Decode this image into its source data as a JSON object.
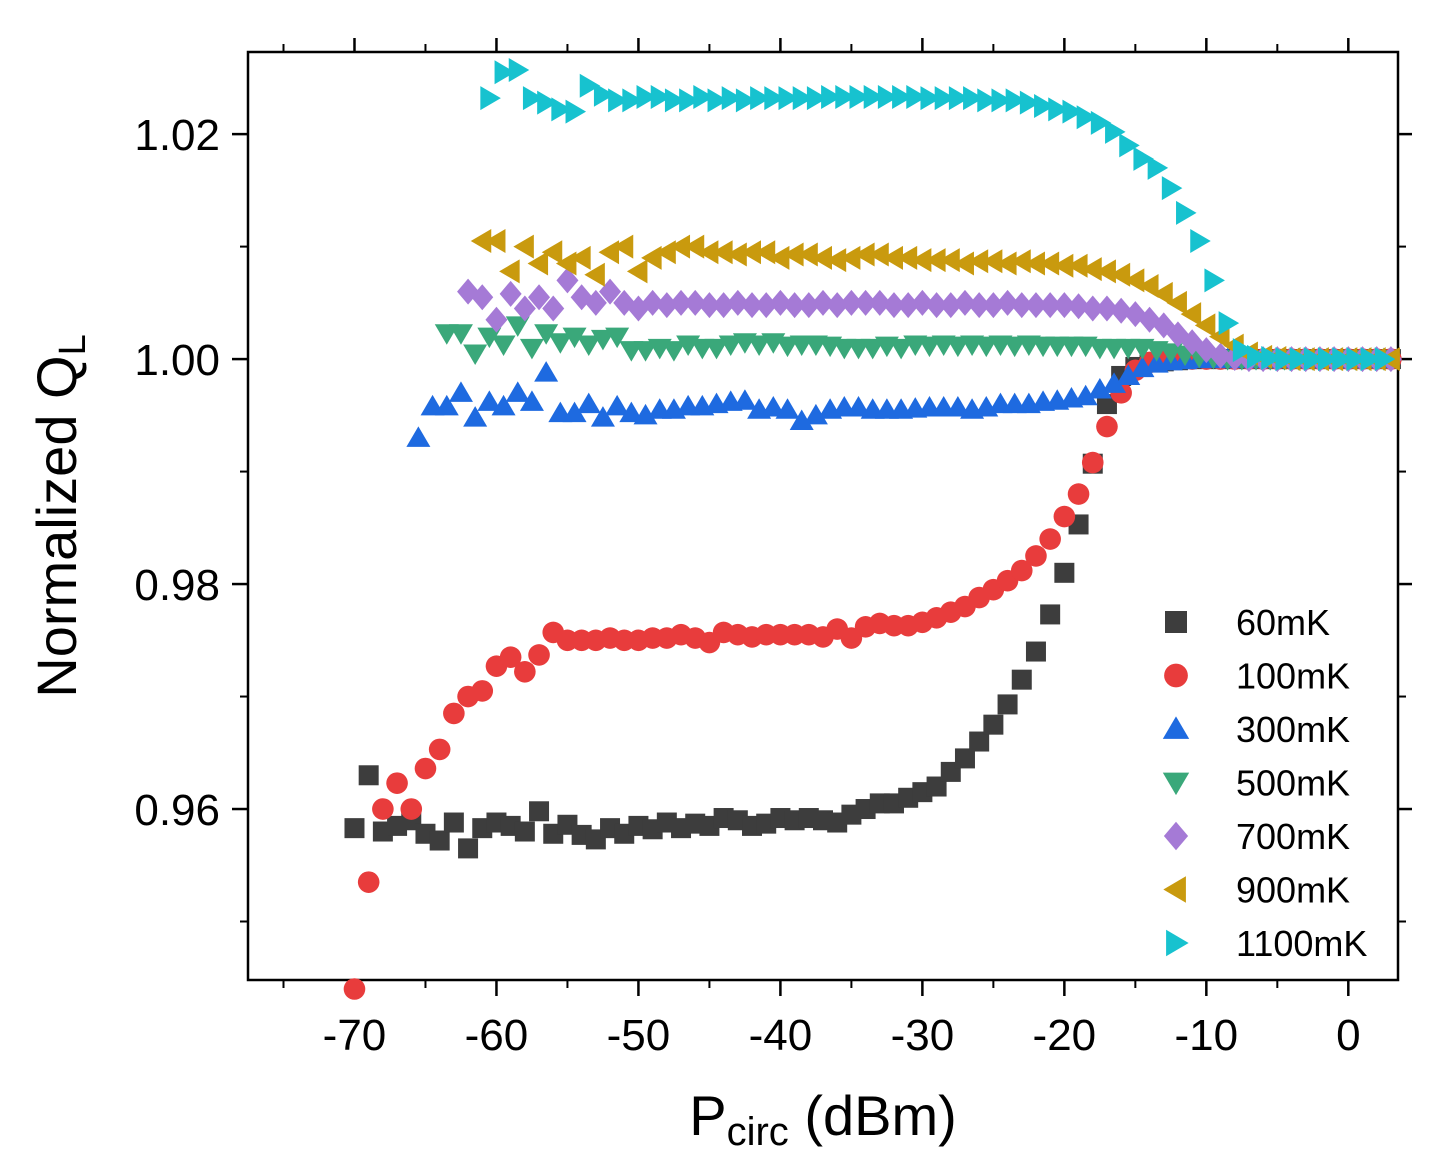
{
  "chart_data": {
    "type": "scatter",
    "xlabel_main": "P",
    "xlabel_sub": "circ",
    "xlabel_unit": " (dBm)",
    "ylabel_main": "Normalized Q",
    "ylabel_sub": "L",
    "xlim": [
      -77.5,
      3.5
    ],
    "ylim": [
      0.9448,
      1.0273
    ],
    "xticks": [
      -70,
      -60,
      -50,
      -40,
      -30,
      -20,
      -10,
      0
    ],
    "xtick_labels": [
      "-70",
      "-60",
      "-50",
      "-40",
      "-30",
      "-20",
      "-10",
      "0"
    ],
    "yticks": [
      0.96,
      0.98,
      1.0,
      1.02
    ],
    "ytick_labels": [
      "0.96",
      "0.98",
      "1.00",
      "1.02"
    ],
    "legend_position": "bottom-right",
    "series": [
      {
        "name": "60mK",
        "marker": "square",
        "color": "#3d3d3d",
        "x": [
          -70,
          -69,
          -68,
          -67,
          -66,
          -65,
          -64,
          -63,
          -62,
          -61,
          -60,
          -59,
          -58,
          -57,
          -56,
          -55,
          -54,
          -53,
          -52,
          -51,
          -50,
          -49,
          -48,
          -47,
          -46,
          -45,
          -44,
          -43,
          -42,
          -41,
          -40,
          -39,
          -38,
          -37,
          -36,
          -35,
          -34,
          -33,
          -32,
          -31,
          -30,
          -29,
          -28,
          -27,
          -26,
          -25,
          -24,
          -23,
          -22,
          -21,
          -20,
          -19,
          -18,
          -17,
          -16,
          -15,
          -14,
          -13,
          -12,
          -11,
          -10,
          -9,
          -8,
          -7,
          -6,
          -5,
          -4,
          -3,
          -2,
          -1,
          0,
          1,
          2,
          3
        ],
        "y": [
          0.9583,
          0.963,
          0.958,
          0.9585,
          0.959,
          0.9578,
          0.9572,
          0.9588,
          0.9565,
          0.9583,
          0.9588,
          0.9585,
          0.958,
          0.9598,
          0.9578,
          0.9586,
          0.9577,
          0.9573,
          0.9583,
          0.9578,
          0.9585,
          0.9582,
          0.9588,
          0.9583,
          0.9587,
          0.9585,
          0.9592,
          0.959,
          0.9585,
          0.9587,
          0.9592,
          0.959,
          0.9592,
          0.959,
          0.9588,
          0.9595,
          0.96,
          0.9605,
          0.9605,
          0.961,
          0.9615,
          0.962,
          0.9633,
          0.9645,
          0.966,
          0.9675,
          0.9693,
          0.9715,
          0.974,
          0.9773,
          0.981,
          0.9853,
          0.9907,
          0.996,
          0.9985,
          0.9993,
          0.9997,
          0.9998,
          0.9999,
          1.0,
          1.0,
          1.0,
          1.0,
          1.0,
          1.0,
          1.0,
          1.0,
          1.0,
          1.0,
          1.0,
          1.0,
          1.0,
          1.0,
          1.0
        ]
      },
      {
        "name": "100mK",
        "marker": "circle",
        "color": "#e83c3c",
        "x": [
          -70,
          -69,
          -68,
          -67,
          -66,
          -65,
          -64,
          -63,
          -62,
          -61,
          -60,
          -59,
          -58,
          -57,
          -56,
          -55,
          -54,
          -53,
          -52,
          -51,
          -50,
          -49,
          -48,
          -47,
          -46,
          -45,
          -44,
          -43,
          -42,
          -41,
          -40,
          -39,
          -38,
          -37,
          -36,
          -35,
          -34,
          -33,
          -32,
          -31,
          -30,
          -29,
          -28,
          -27,
          -26,
          -25,
          -24,
          -23,
          -22,
          -21,
          -20,
          -19,
          -18,
          -17,
          -16,
          -15,
          -14,
          -13,
          -12,
          -11,
          -10,
          -9,
          -8,
          -7,
          -6,
          -5,
          -4,
          -3,
          -2,
          -1,
          0,
          1,
          2,
          3
        ],
        "y": [
          0.944,
          0.9535,
          0.96,
          0.9623,
          0.96,
          0.9636,
          0.9653,
          0.9685,
          0.97,
          0.9705,
          0.9727,
          0.9735,
          0.9722,
          0.9737,
          0.9757,
          0.975,
          0.975,
          0.975,
          0.9752,
          0.975,
          0.975,
          0.9752,
          0.9752,
          0.9755,
          0.9752,
          0.9748,
          0.9757,
          0.9755,
          0.9753,
          0.9755,
          0.9755,
          0.9755,
          0.9755,
          0.9753,
          0.976,
          0.9752,
          0.9762,
          0.9765,
          0.9763,
          0.9763,
          0.9766,
          0.977,
          0.9775,
          0.978,
          0.9788,
          0.9795,
          0.9803,
          0.9812,
          0.9825,
          0.984,
          0.986,
          0.988,
          0.9908,
          0.994,
          0.997,
          0.999,
          0.9997,
          0.9999,
          1.0,
          1.0,
          1.0,
          1.0,
          1.0,
          1.0,
          1.0,
          1.0,
          1.0,
          1.0,
          1.0,
          1.0,
          1.0,
          1.0,
          1.0,
          1.0
        ]
      },
      {
        "name": "300mK",
        "marker": "triangle-up",
        "color": "#1e6ae0",
        "x": [
          -65.5,
          -64.5,
          -63.5,
          -62.5,
          -61.5,
          -60.5,
          -59.5,
          -58.5,
          -57.5,
          -56.5,
          -55.5,
          -54.5,
          -53.5,
          -52.5,
          -51.5,
          -50.5,
          -49.5,
          -48.5,
          -47.5,
          -46.5,
          -45.5,
          -44.5,
          -43.5,
          -42.5,
          -41.5,
          -40.5,
          -39.5,
          -38.5,
          -37.5,
          -36.5,
          -35.5,
          -34.5,
          -33.5,
          -32.5,
          -31.5,
          -30.5,
          -29.5,
          -28.5,
          -27.5,
          -26.5,
          -25.5,
          -24.5,
          -23.5,
          -22.5,
          -21.5,
          -20.5,
          -19.5,
          -18.5,
          -17.5,
          -16.5,
          -15.5,
          -14.5,
          -13.5,
          -12.5,
          -11.5,
          -10.5,
          -9.5,
          -8.5,
          -7.5,
          -6.5,
          -5.5,
          -4.5,
          -3.5,
          -2.5,
          -1.5,
          -0.5,
          0.5,
          1.5,
          2.5
        ],
        "y": [
          0.993,
          0.9958,
          0.9958,
          0.997,
          0.9948,
          0.9962,
          0.9958,
          0.997,
          0.9962,
          0.9988,
          0.9952,
          0.9952,
          0.996,
          0.9948,
          0.9958,
          0.9952,
          0.995,
          0.9955,
          0.9955,
          0.9958,
          0.9958,
          0.996,
          0.9962,
          0.9963,
          0.9955,
          0.9957,
          0.9955,
          0.9945,
          0.995,
          0.9955,
          0.9957,
          0.9957,
          0.9955,
          0.9955,
          0.9955,
          0.9956,
          0.9957,
          0.9957,
          0.9957,
          0.9955,
          0.9957,
          0.996,
          0.996,
          0.996,
          0.9962,
          0.9963,
          0.9965,
          0.9967,
          0.9973,
          0.9978,
          0.9985,
          0.9992,
          0.9996,
          0.9998,
          0.9999,
          1.0,
          1.0,
          1.0,
          1.0,
          1.0,
          1.0,
          1.0,
          1.0,
          1.0,
          1.0,
          1.0,
          1.0,
          1.0,
          1.0
        ]
      },
      {
        "name": "500mK",
        "marker": "triangle-down",
        "color": "#3aa87a",
        "x": [
          -63.5,
          -62.5,
          -61.5,
          -60.5,
          -59.5,
          -58.5,
          -57.5,
          -56.5,
          -55.5,
          -54.5,
          -53.5,
          -52.5,
          -51.5,
          -50.5,
          -49.5,
          -48.5,
          -47.5,
          -46.5,
          -45.5,
          -44.5,
          -43.5,
          -42.5,
          -41.5,
          -40.5,
          -39.5,
          -38.5,
          -37.5,
          -36.5,
          -35.5,
          -34.5,
          -33.5,
          -32.5,
          -31.5,
          -30.5,
          -29.5,
          -28.5,
          -27.5,
          -26.5,
          -25.5,
          -24.5,
          -23.5,
          -22.5,
          -21.5,
          -20.5,
          -19.5,
          -18.5,
          -17.5,
          -16.5,
          -15.5,
          -14.5,
          -13.5,
          -12.5,
          -11.5,
          -10.5,
          -9.5,
          -8.5,
          -7.5,
          -6.5,
          -5.5,
          -4.5,
          -3.5,
          -2.5,
          -1.5,
          -0.5,
          0.5,
          1.5,
          2.5
        ],
        "y": [
          1.0023,
          1.0023,
          1.0005,
          1.002,
          1.0013,
          1.003,
          1.001,
          1.0023,
          1.0015,
          1.002,
          1.0013,
          1.0018,
          1.002,
          1.0008,
          1.0008,
          1.001,
          1.0008,
          1.0013,
          1.001,
          1.001,
          1.0013,
          1.0015,
          1.0013,
          1.0015,
          1.0012,
          1.0013,
          1.0013,
          1.0012,
          1.001,
          1.001,
          1.001,
          1.0012,
          1.001,
          1.0013,
          1.0012,
          1.0013,
          1.0012,
          1.0013,
          1.0012,
          1.0013,
          1.0012,
          1.0013,
          1.0012,
          1.0012,
          1.0012,
          1.0012,
          1.001,
          1.001,
          1.001,
          1.001,
          1.0008,
          1.0006,
          1.0004,
          1.0002,
          1.0001,
          1.0,
          1.0,
          1.0,
          1.0,
          1.0,
          1.0,
          1.0,
          1.0,
          1.0,
          1.0,
          1.0,
          1.0
        ]
      },
      {
        "name": "700mK",
        "marker": "diamond",
        "color": "#a57ad6",
        "x": [
          -62,
          -61,
          -60,
          -59,
          -58,
          -57,
          -56,
          -55,
          -54,
          -53,
          -52,
          -51,
          -50,
          -49,
          -48,
          -47,
          -46,
          -45,
          -44,
          -43,
          -42,
          -41,
          -40,
          -39,
          -38,
          -37,
          -36,
          -35,
          -34,
          -33,
          -32,
          -31,
          -30,
          -29,
          -28,
          -27,
          -26,
          -25,
          -24,
          -23,
          -22,
          -21,
          -20,
          -19,
          -18,
          -17,
          -16,
          -15,
          -14,
          -13,
          -12,
          -11,
          -10,
          -9,
          -8,
          -7,
          -6,
          -5,
          -4,
          -3,
          -2,
          -1,
          0,
          1,
          2,
          3
        ],
        "y": [
          1.006,
          1.0055,
          1.0035,
          1.0058,
          1.0045,
          1.0055,
          1.0045,
          1.007,
          1.0055,
          1.005,
          1.006,
          1.005,
          1.0045,
          1.005,
          1.0048,
          1.005,
          1.005,
          1.0048,
          1.0048,
          1.005,
          1.0048,
          1.0048,
          1.005,
          1.0048,
          1.0048,
          1.005,
          1.0048,
          1.005,
          1.005,
          1.005,
          1.0048,
          1.0048,
          1.005,
          1.0048,
          1.0048,
          1.005,
          1.0048,
          1.0048,
          1.005,
          1.0048,
          1.0048,
          1.0048,
          1.0048,
          1.0047,
          1.0045,
          1.0045,
          1.0043,
          1.004,
          1.0035,
          1.003,
          1.0022,
          1.0015,
          1.0008,
          1.0003,
          1.0001,
          1.0,
          1.0,
          1.0,
          1.0,
          1.0,
          1.0,
          1.0,
          1.0,
          1.0,
          1.0,
          1.0
        ]
      },
      {
        "name": "900mK",
        "marker": "triangle-left",
        "color": "#c99a0e",
        "x": [
          -61,
          -60,
          -59,
          -58,
          -57,
          -56,
          -55,
          -54,
          -53,
          -52,
          -51,
          -50,
          -49,
          -48,
          -47,
          -46,
          -45,
          -44,
          -43,
          -42,
          -41,
          -40,
          -39,
          -38,
          -37,
          -36,
          -35,
          -34,
          -33,
          -32,
          -31,
          -30,
          -29,
          -28,
          -27,
          -26,
          -25,
          -24,
          -23,
          -22,
          -21,
          -20,
          -19,
          -18,
          -17,
          -16,
          -15,
          -14,
          -13,
          -12,
          -11,
          -10,
          -9,
          -8,
          -7,
          -6,
          -5,
          -4,
          -3,
          -2,
          -1,
          0,
          1,
          2,
          3
        ],
        "y": [
          1.0105,
          1.0105,
          1.0078,
          1.01,
          1.0085,
          1.0095,
          1.0085,
          1.009,
          1.0075,
          1.0095,
          1.01,
          1.0078,
          1.009,
          1.0095,
          1.01,
          1.01,
          1.0095,
          1.0095,
          1.0093,
          1.0095,
          1.0095,
          1.009,
          1.0093,
          1.0093,
          1.009,
          1.0088,
          1.009,
          1.0093,
          1.0093,
          1.009,
          1.009,
          1.0088,
          1.0088,
          1.0088,
          1.0085,
          1.0087,
          1.0087,
          1.0085,
          1.0087,
          1.0085,
          1.0085,
          1.0083,
          1.0083,
          1.008,
          1.0078,
          1.0075,
          1.007,
          1.0065,
          1.0058,
          1.005,
          1.004,
          1.003,
          1.002,
          1.0012,
          1.0005,
          1.0002,
          1.0001,
          1.0,
          1.0,
          1.0,
          1.0,
          1.0,
          1.0,
          1.0,
          1.0
        ]
      },
      {
        "name": "1100mK",
        "marker": "triangle-right",
        "color": "#17c2cf",
        "x": [
          -60.5,
          -59.5,
          -58.5,
          -57.5,
          -56.5,
          -55.5,
          -54.5,
          -53.5,
          -52.5,
          -51.5,
          -50.5,
          -49.5,
          -48.5,
          -47.5,
          -46.5,
          -45.5,
          -44.5,
          -43.5,
          -42.5,
          -41.5,
          -40.5,
          -39.5,
          -38.5,
          -37.5,
          -36.5,
          -35.5,
          -34.5,
          -33.5,
          -32.5,
          -31.5,
          -30.5,
          -29.5,
          -28.5,
          -27.5,
          -26.5,
          -25.5,
          -24.5,
          -23.5,
          -22.5,
          -21.5,
          -20.5,
          -19.5,
          -18.5,
          -17.5,
          -16.5,
          -15.5,
          -14.5,
          -13.5,
          -12.5,
          -11.5,
          -10.5,
          -9.5,
          -8.5,
          -7.5,
          -6.5,
          -5.5,
          -4.5,
          -3.5,
          -2.5,
          -1.5,
          -0.5,
          0.5,
          1.5,
          2.5
        ],
        "y": [
          1.0232,
          1.0255,
          1.0257,
          1.0232,
          1.0228,
          1.0222,
          1.022,
          1.0243,
          1.0235,
          1.023,
          1.023,
          1.0233,
          1.0233,
          1.023,
          1.023,
          1.0233,
          1.023,
          1.0232,
          1.023,
          1.0232,
          1.0232,
          1.0232,
          1.0232,
          1.0232,
          1.0233,
          1.0233,
          1.0233,
          1.0233,
          1.0233,
          1.0233,
          1.0233,
          1.0232,
          1.0232,
          1.0232,
          1.0232,
          1.023,
          1.023,
          1.023,
          1.0228,
          1.0225,
          1.0222,
          1.022,
          1.0215,
          1.021,
          1.0202,
          1.019,
          1.0178,
          1.017,
          1.0152,
          1.013,
          1.0105,
          1.007,
          1.0032,
          1.0008,
          1.0002,
          1.0001,
          1.0,
          1.0,
          1.0,
          1.0,
          1.0,
          1.0,
          1.0,
          1.0
        ]
      }
    ]
  }
}
